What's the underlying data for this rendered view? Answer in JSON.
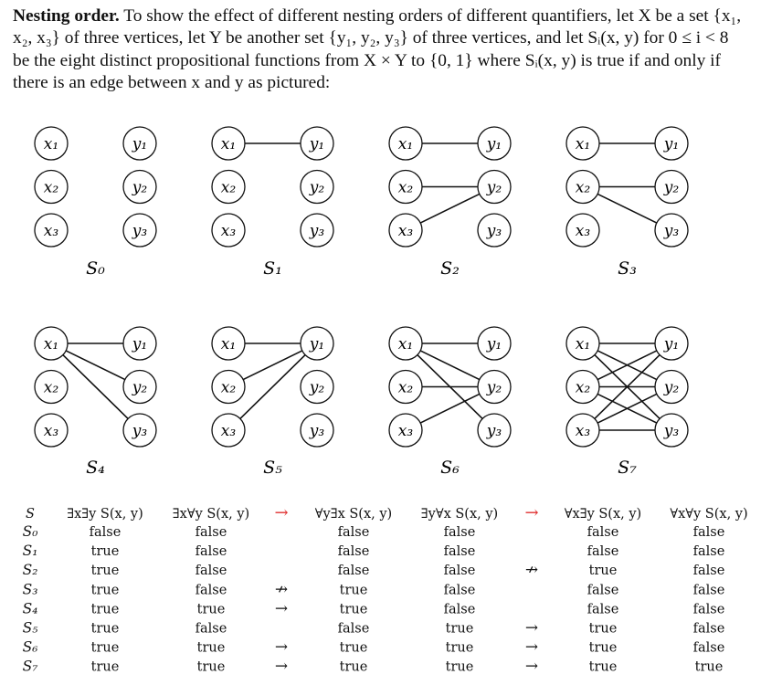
{
  "paragraph": {
    "heading": "Nesting order.",
    "text": "To show the effect of different nesting orders of different quantifiers, let X be a set {x₁, x₂, x₃} of three vertices, let Y be another set {y₁, y₂, y₃} of three vertices, and let Sᵢ(x, y) for 0 ≤ i < 8 be the eight distinct propositional functions from X × Y to {0, 1} where Sᵢ(x, y) is true if and only if there is an edge between x and y as pictured:"
  },
  "graphs": [
    {
      "name": "S₀",
      "edges": []
    },
    {
      "name": "S₁",
      "edges": [
        [
          1,
          1
        ]
      ]
    },
    {
      "name": "S₂",
      "edges": [
        [
          1,
          1
        ],
        [
          2,
          2
        ],
        [
          3,
          2
        ]
      ]
    },
    {
      "name": "S₃",
      "edges": [
        [
          1,
          1
        ],
        [
          2,
          2
        ],
        [
          2,
          3
        ]
      ]
    },
    {
      "name": "S₄",
      "edges": [
        [
          1,
          1
        ],
        [
          1,
          2
        ],
        [
          1,
          3
        ]
      ]
    },
    {
      "name": "S₅",
      "edges": [
        [
          1,
          1
        ],
        [
          2,
          1
        ],
        [
          3,
          1
        ]
      ]
    },
    {
      "name": "S₆",
      "edges": [
        [
          1,
          1
        ],
        [
          1,
          2
        ],
        [
          1,
          3
        ],
        [
          2,
          2
        ],
        [
          3,
          2
        ]
      ]
    },
    {
      "name": "S₇",
      "edges": [
        [
          1,
          1
        ],
        [
          1,
          2
        ],
        [
          1,
          3
        ],
        [
          2,
          1
        ],
        [
          2,
          2
        ],
        [
          2,
          3
        ],
        [
          3,
          1
        ],
        [
          3,
          2
        ],
        [
          3,
          3
        ]
      ]
    }
  ],
  "vertex_labels": {
    "x": [
      "x₁",
      "x₂",
      "x₃"
    ],
    "y": [
      "y₁",
      "y₂",
      "y₃"
    ]
  },
  "table": {
    "headers": [
      "S",
      "∃x∃y S(x, y)",
      "∃x∀y S(x, y)",
      "→",
      "∀y∃x S(x, y)",
      "∃y∀x S(x, y)",
      "→",
      "∀x∃y S(x, y)",
      "∀x∀y S(x, y)"
    ],
    "rows": [
      [
        "S₀",
        "false",
        "false",
        "",
        "false",
        "false",
        "",
        "false",
        "false"
      ],
      [
        "S₁",
        "true",
        "false",
        "",
        "false",
        "false",
        "",
        "false",
        "false"
      ],
      [
        "S₂",
        "true",
        "false",
        "",
        "false",
        "false",
        "↛",
        "true",
        "false"
      ],
      [
        "S₃",
        "true",
        "false",
        "↛",
        "true",
        "false",
        "",
        "false",
        "false"
      ],
      [
        "S₄",
        "true",
        "true",
        "→",
        "true",
        "false",
        "",
        "false",
        "false"
      ],
      [
        "S₅",
        "true",
        "false",
        "",
        "false",
        "true",
        "→",
        "true",
        "false"
      ],
      [
        "S₆",
        "true",
        "true",
        "→",
        "true",
        "true",
        "→",
        "true",
        "false"
      ],
      [
        "S₇",
        "true",
        "true",
        "→",
        "true",
        "true",
        "→",
        "true",
        "true"
      ]
    ],
    "colors": {
      "header_arrow": "#e03030",
      "text": "#111111"
    }
  }
}
